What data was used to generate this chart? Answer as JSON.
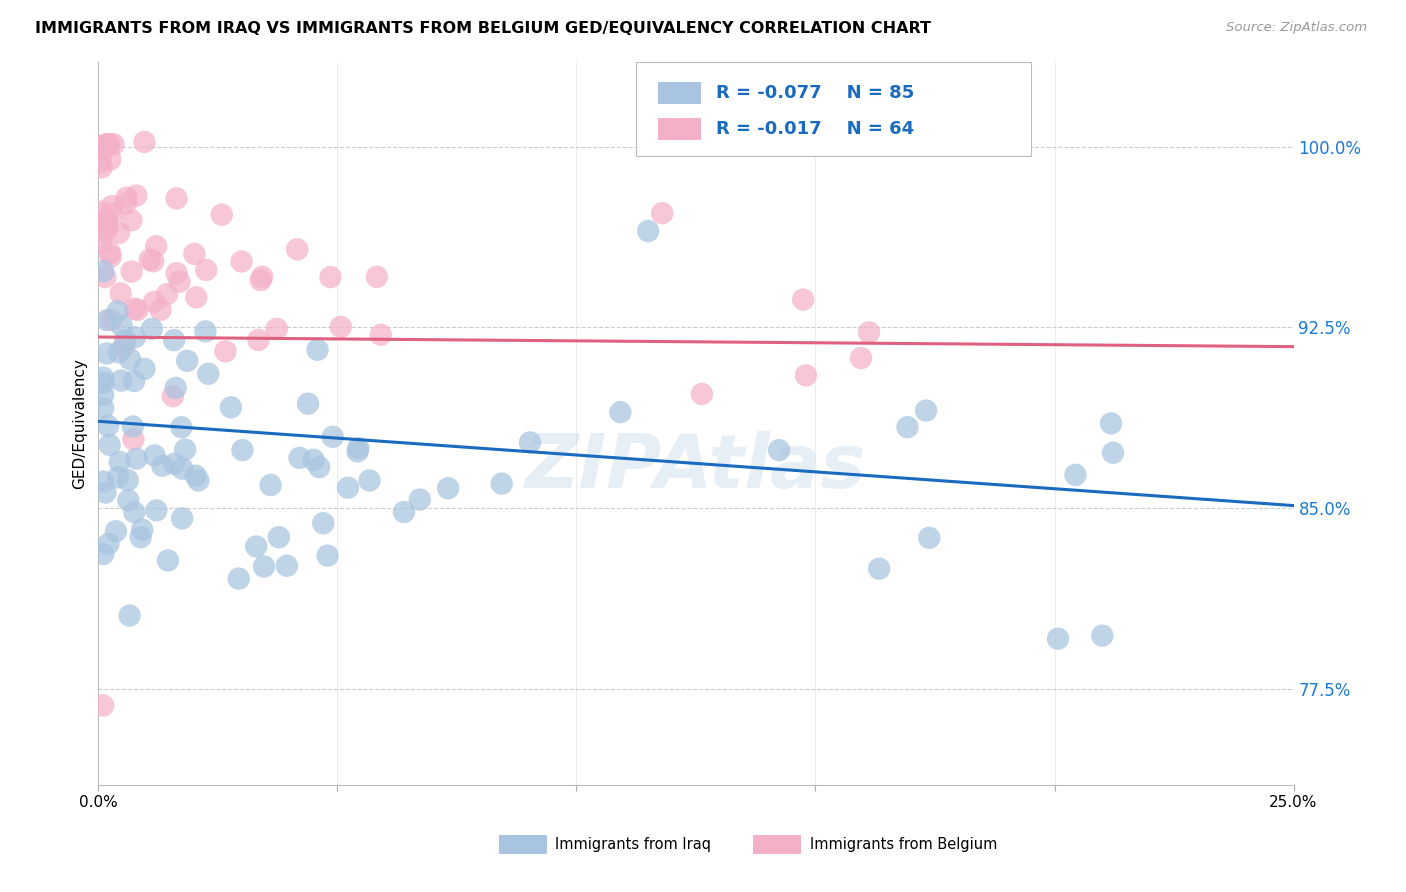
{
  "title": "IMMIGRANTS FROM IRAQ VS IMMIGRANTS FROM BELGIUM GED/EQUIVALENCY CORRELATION CHART",
  "source": "Source: ZipAtlas.com",
  "ylabel": "GED/Equivalency",
  "ytick_labels": [
    "77.5%",
    "85.0%",
    "92.5%",
    "100.0%"
  ],
  "ytick_values": [
    0.775,
    0.85,
    0.925,
    1.0
  ],
  "xmin": 0.0,
  "xmax": 0.25,
  "ymin": 0.735,
  "ymax": 1.035,
  "iraq_R": -0.077,
  "iraq_N": 85,
  "belgium_R": -0.017,
  "belgium_N": 64,
  "iraq_color": "#a8c4e0",
  "iraq_line_color": "#1a6bbf",
  "belgium_color": "#f4b0c8",
  "belgium_line_color": "#e06080",
  "watermark": "ZIPAtlas",
  "legend_iraq_label": "Immigrants from Iraq",
  "legend_belgium_label": "Immigrants from Belgium",
  "iraq_line_x0": 0.0,
  "iraq_line_y0": 0.886,
  "iraq_line_x1": 0.25,
  "iraq_line_y1": 0.851,
  "belg_line_x0": 0.0,
  "belg_line_y0": 0.921,
  "belg_line_x1": 0.25,
  "belg_line_y1": 0.917,
  "xtick_major": [
    0.0,
    0.05,
    0.1,
    0.15,
    0.2,
    0.25
  ],
  "xtick_show_labels": [
    0.0,
    0.25
  ],
  "xtick_label_left": "0.0%",
  "xtick_label_right": "25.0%"
}
